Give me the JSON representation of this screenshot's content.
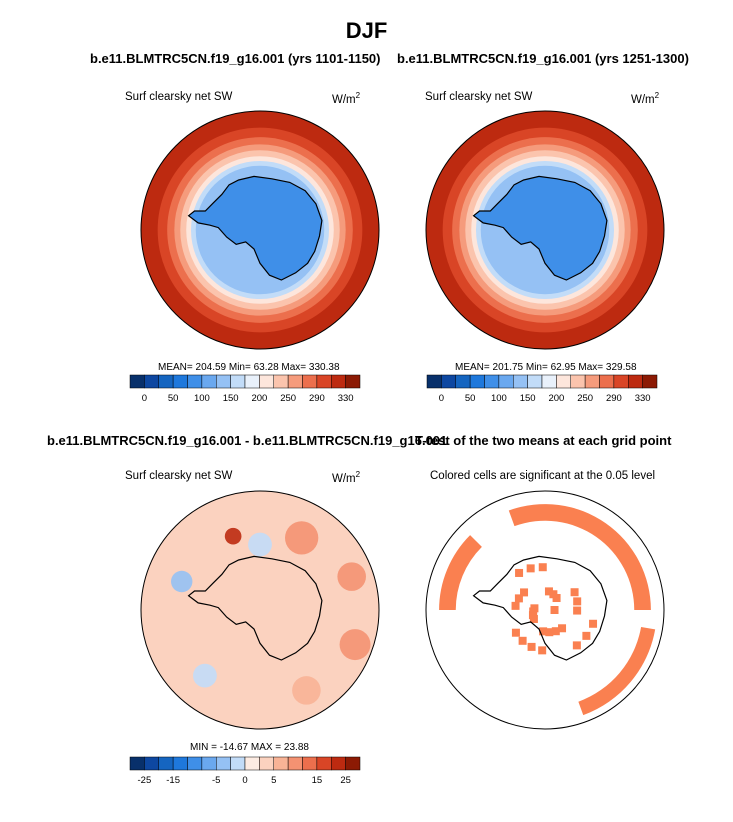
{
  "figure": {
    "title": "DJF"
  },
  "chart_data": [
    {
      "type": "heatmap",
      "projection": "south-polar-stereographic",
      "title": "b.e11.BLMTRC5CN.f19_g16.001 (yrs 1101-1150)",
      "variable": "Surf clearsky net SW",
      "units": "W/m",
      "units_sup": "2",
      "stats": "MEAN= 204.59  Min=  63.28  Max= 330.38",
      "colorbar": {
        "levels": [
          0,
          25,
          50,
          75,
          100,
          125,
          150,
          175,
          200,
          225,
          250,
          270,
          290,
          310,
          330
        ],
        "tick_labels": [
          "0",
          "50",
          "100",
          "150",
          "200",
          "250",
          "290",
          "330"
        ],
        "colors": [
          "#08306b",
          "#0d47a1",
          "#1565c0",
          "#1e78dc",
          "#3f8fe8",
          "#6aa8ef",
          "#95c1f4",
          "#c2dcf8",
          "#e9f1fb",
          "#fde6dc",
          "#fbc4ad",
          "#f59b7c",
          "#ec6f4d",
          "#d94526",
          "#bd2a10",
          "#8c1a04"
        ]
      },
      "field": {
        "continent_value": 75,
        "rings": [
          {
            "radius_fraction": 1.0,
            "value": 320
          },
          {
            "radius_fraction": 0.86,
            "value": 300
          },
          {
            "radius_fraction": 0.78,
            "value": 280
          },
          {
            "radius_fraction": 0.72,
            "value": 255
          },
          {
            "radius_fraction": 0.67,
            "value": 230
          },
          {
            "radius_fraction": 0.62,
            "value": 205
          },
          {
            "radius_fraction": 0.58,
            "value": 170
          },
          {
            "radius_fraction": 0.54,
            "value": 130
          }
        ]
      }
    },
    {
      "type": "heatmap",
      "projection": "south-polar-stereographic",
      "title": "b.e11.BLMTRC5CN.f19_g16.001 (yrs 1251-1300)",
      "variable": "Surf clearsky net SW",
      "units": "W/m",
      "units_sup": "2",
      "stats": "MEAN= 201.75  Min=  62.95  Max= 329.58",
      "colorbar": {
        "levels": [
          0,
          25,
          50,
          75,
          100,
          125,
          150,
          175,
          200,
          225,
          250,
          270,
          290,
          310,
          330
        ],
        "tick_labels": [
          "0",
          "50",
          "100",
          "150",
          "200",
          "250",
          "290",
          "330"
        ],
        "colors": [
          "#08306b",
          "#0d47a1",
          "#1565c0",
          "#1e78dc",
          "#3f8fe8",
          "#6aa8ef",
          "#95c1f4",
          "#c2dcf8",
          "#e9f1fb",
          "#fde6dc",
          "#fbc4ad",
          "#f59b7c",
          "#ec6f4d",
          "#d94526",
          "#bd2a10",
          "#8c1a04"
        ]
      },
      "field": {
        "continent_value": 75,
        "rings": [
          {
            "radius_fraction": 1.0,
            "value": 320
          },
          {
            "radius_fraction": 0.86,
            "value": 300
          },
          {
            "radius_fraction": 0.78,
            "value": 280
          },
          {
            "radius_fraction": 0.72,
            "value": 255
          },
          {
            "radius_fraction": 0.67,
            "value": 230
          },
          {
            "radius_fraction": 0.62,
            "value": 205
          },
          {
            "radius_fraction": 0.58,
            "value": 170
          },
          {
            "radius_fraction": 0.54,
            "value": 130
          }
        ]
      }
    },
    {
      "type": "heatmap",
      "projection": "south-polar-stereographic",
      "title": "b.e11.BLMTRC5CN.f19_g16.001 - b.e11.BLMTRC5CN.f19_g16.001",
      "variable": "Surf clearsky net SW",
      "units": "W/m",
      "units_sup": "2",
      "stats": "MIN = -14.67  MAX =  23.88",
      "colorbar": {
        "levels": [
          -35,
          -30,
          -25,
          -20,
          -15,
          -10,
          -5,
          -2,
          0,
          2,
          5,
          10,
          15,
          20,
          25,
          30
        ],
        "tick_labels": [
          "-25",
          "-15",
          "-5",
          "0",
          "5",
          "15",
          "25"
        ],
        "colors": [
          "#08306b",
          "#0d47a1",
          "#1565c0",
          "#1e78dc",
          "#3f8fe8",
          "#6aa8ef",
          "#95c1f4",
          "#c2dcf8",
          "#fdece3",
          "#fbd2bf",
          "#f8b396",
          "#f49272",
          "#ec6f4d",
          "#d94526",
          "#bd2a10",
          "#8c1a04"
        ]
      },
      "field": {
        "background_value": 1,
        "patches": [
          {
            "angle": 300,
            "radius_fraction": 0.7,
            "value": 7,
            "size_fraction": 0.14
          },
          {
            "angle": 340,
            "radius_fraction": 0.82,
            "value": 5,
            "size_fraction": 0.12
          },
          {
            "angle": 20,
            "radius_fraction": 0.85,
            "value": 5,
            "size_fraction": 0.13
          },
          {
            "angle": 60,
            "radius_fraction": 0.78,
            "value": 4,
            "size_fraction": 0.12
          },
          {
            "angle": 130,
            "radius_fraction": 0.72,
            "value": -3,
            "size_fraction": 0.1
          },
          {
            "angle": 200,
            "radius_fraction": 0.7,
            "value": -6,
            "size_fraction": 0.09
          },
          {
            "angle": 250,
            "radius_fraction": 0.66,
            "value": 20,
            "size_fraction": 0.07
          },
          {
            "angle": 270,
            "radius_fraction": 0.55,
            "value": -3,
            "size_fraction": 0.1
          }
        ]
      }
    },
    {
      "type": "heatmap",
      "projection": "south-polar-stereographic",
      "title": "T-test of the two means at each grid point",
      "variable": "Colored cells are significant at the 0.05 level",
      "significant_color": "#fa8050",
      "field": {
        "rings": [
          {
            "radius_fraction": 0.82,
            "width_fraction": 0.14,
            "angle_start": 250,
            "angle_end": 360
          },
          {
            "radius_fraction": 0.82,
            "width_fraction": 0.14,
            "angle_start": 180,
            "angle_end": 225
          },
          {
            "radius_fraction": 0.88,
            "width_fraction": 0.12,
            "angle_start": 10,
            "angle_end": 70
          }
        ]
      }
    }
  ]
}
